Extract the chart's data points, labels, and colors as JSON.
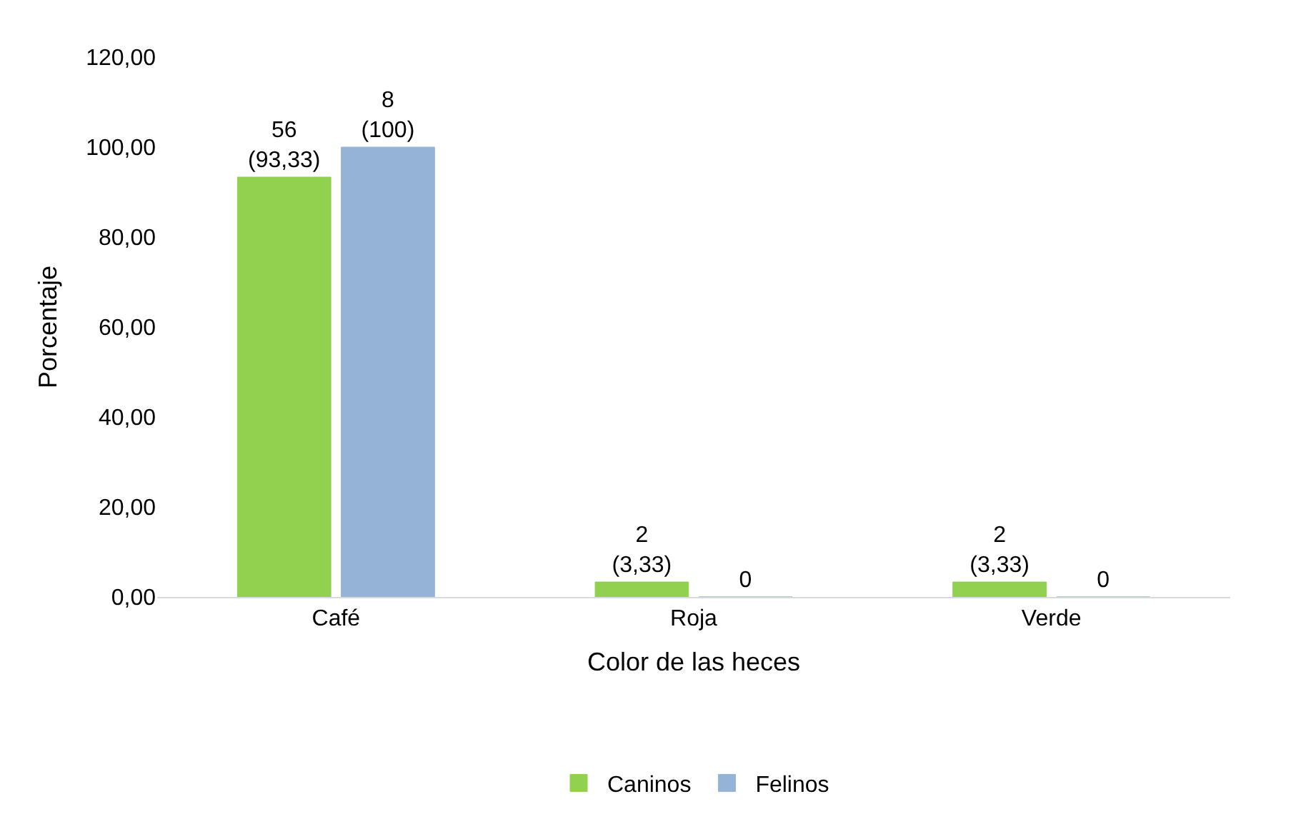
{
  "chart_data": {
    "type": "bar",
    "xlabel": "Color de las heces",
    "ylabel": "Porcentaje",
    "categories": [
      "Café",
      "Roja",
      "Verde"
    ],
    "series": [
      {
        "name": "Caninos",
        "color": "#92d050",
        "values": [
          93.33,
          3.33,
          3.33
        ],
        "value_labels": [
          "56\n(93,33)",
          "2\n(3,33)",
          "2\n(3,33)"
        ]
      },
      {
        "name": "Felinos",
        "color": "#95b3d7",
        "values": [
          100,
          0,
          0
        ],
        "value_labels": [
          "8\n(100)",
          "0",
          "0"
        ]
      }
    ],
    "ylim": [
      0,
      120
    ],
    "yticks": [
      {
        "value": 0,
        "label": "0,00"
      },
      {
        "value": 20,
        "label": "20,00"
      },
      {
        "value": 40,
        "label": "40,00"
      },
      {
        "value": 60,
        "label": "60,00"
      },
      {
        "value": 80,
        "label": "80,00"
      },
      {
        "value": 100,
        "label": "100,00"
      },
      {
        "value": 120,
        "label": "120,00"
      }
    ],
    "grid": false,
    "legend": "bottom"
  }
}
